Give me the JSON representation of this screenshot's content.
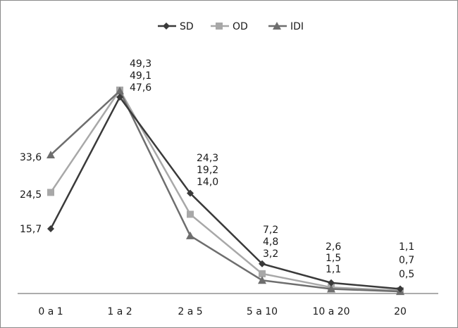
{
  "chart_data": {
    "type": "line",
    "title": "",
    "xlabel": "",
    "ylabel": "",
    "ylim": [
      0,
      52
    ],
    "grid": false,
    "legend": "top-center",
    "categories": [
      "0 a 1",
      "1 a 2",
      "2 a 5",
      "5 a 10",
      "10 a 20",
      "20"
    ],
    "series": [
      {
        "name": "SD",
        "marker": "diamond",
        "color": "#3a3a3a",
        "values": [
          15.7,
          47.6,
          24.3,
          7.2,
          2.6,
          1.1
        ],
        "labels": [
          "15,7",
          "47,6",
          "24,3",
          "7,2",
          "2,6",
          "1,1"
        ]
      },
      {
        "name": "OD",
        "marker": "square",
        "color": "#a8a8a8",
        "values": [
          24.5,
          49.3,
          19.2,
          4.8,
          1.5,
          0.7
        ],
        "labels": [
          "24,5",
          "49,3",
          "19,2",
          "4,8",
          "1,5",
          "0,7"
        ]
      },
      {
        "name": "IDI",
        "marker": "triangle",
        "color": "#6e6e6e",
        "values": [
          33.6,
          49.1,
          14.0,
          3.2,
          1.1,
          0.5
        ],
        "labels": [
          "33,6",
          "49,1",
          "14,0",
          "3,2",
          "1,1",
          "0,5"
        ]
      }
    ]
  }
}
